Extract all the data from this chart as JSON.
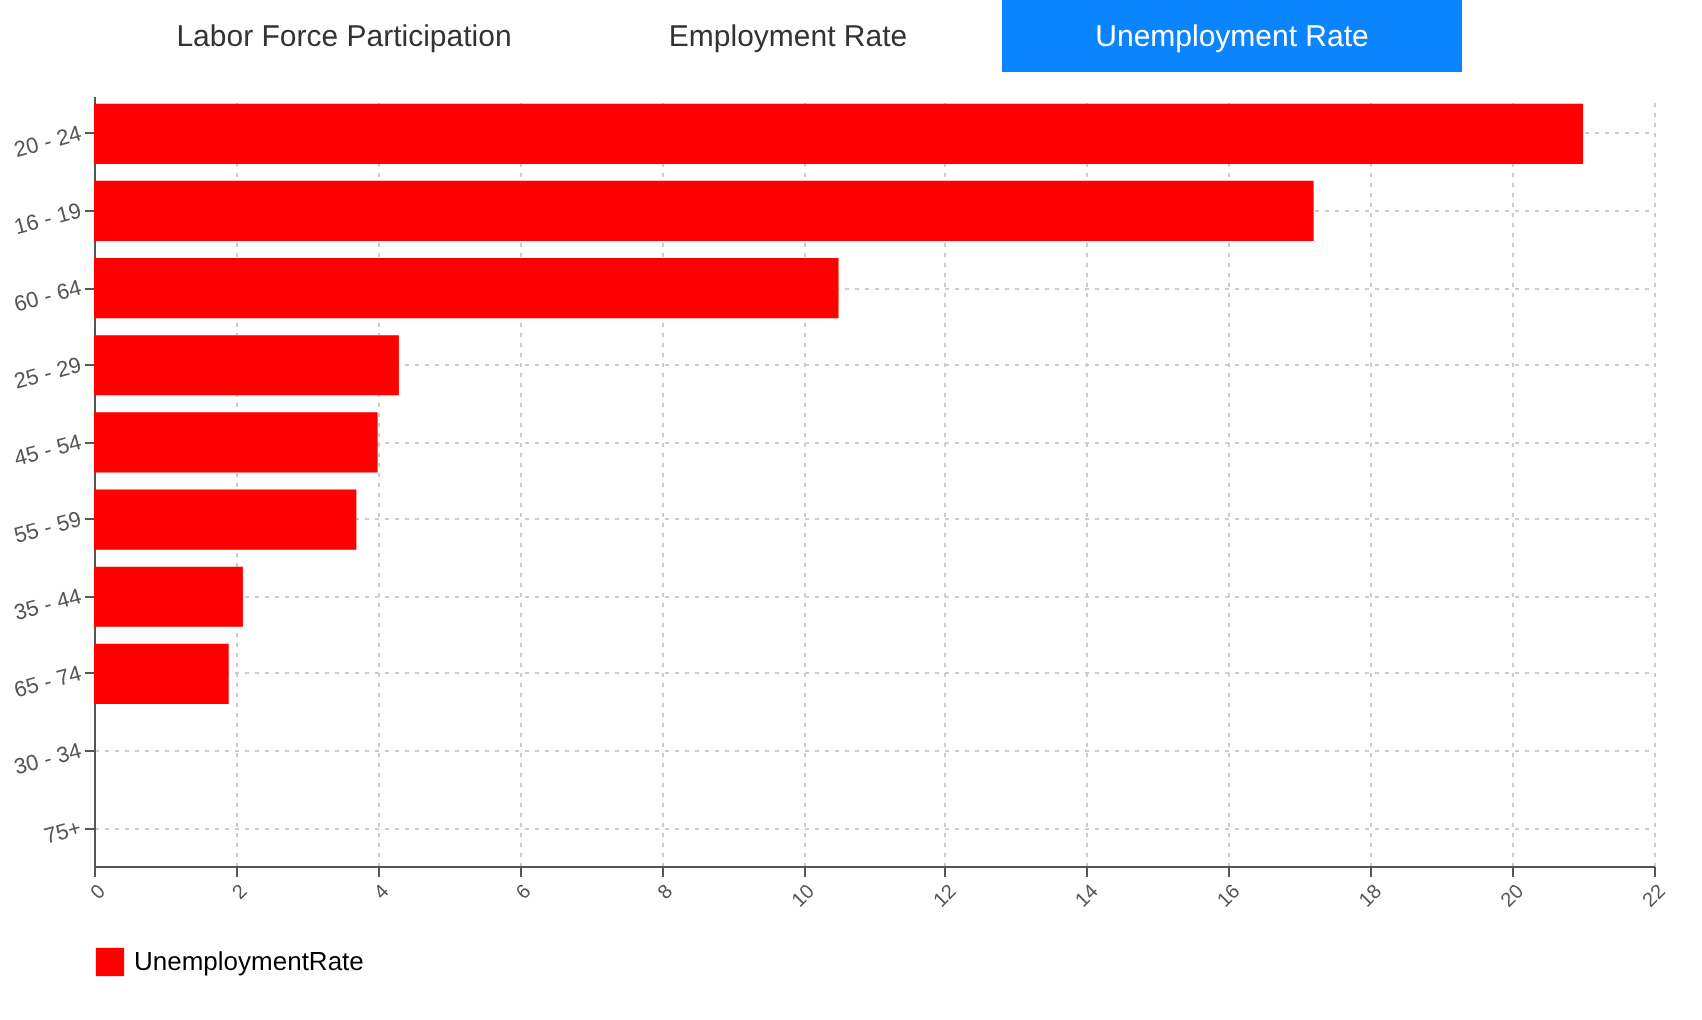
{
  "chart_data": {
    "type": "bar",
    "orientation": "horizontal",
    "annotations": [
      "Labor Force Participation",
      "Employment Rate",
      "Unemployment Rate"
    ],
    "categories": [
      "20 - 24",
      "16 - 19",
      "60 - 64",
      "25 - 29",
      "45 - 54",
      "55 - 59",
      "35 - 44",
      "65 - 74",
      "30 - 34",
      "75+"
    ],
    "series": [
      {
        "name": "UnemploymentRate",
        "color": "#ff0000",
        "values": [
          21.0,
          17.2,
          10.5,
          4.3,
          4.0,
          3.7,
          2.1,
          1.9,
          null,
          null
        ]
      }
    ],
    "xlim": [
      0,
      22
    ],
    "xticks": [
      0,
      2,
      4,
      6,
      8,
      10,
      12,
      14,
      16,
      18,
      20,
      22
    ],
    "grid": true,
    "legend": "bottom"
  }
}
